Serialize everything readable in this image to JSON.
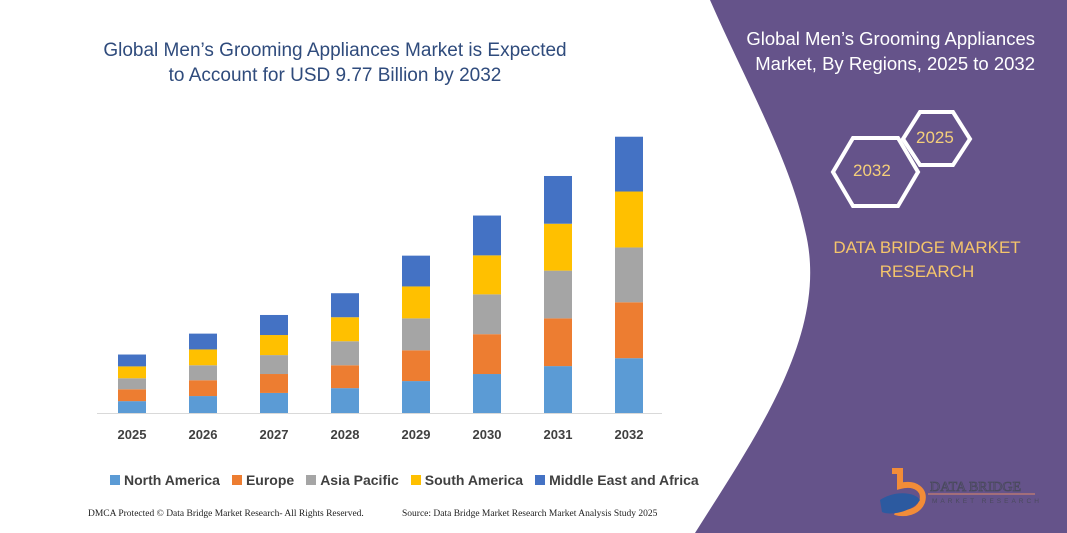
{
  "chart_data": {
    "type": "bar",
    "stacked": true,
    "title": "Global Men’s Grooming Appliances Market is Expected to Account for USD 9.77 Billion by 2032",
    "categories": [
      "2025",
      "2026",
      "2027",
      "2028",
      "2029",
      "2030",
      "2031",
      "2032"
    ],
    "unit": "USD Billion (estimated)",
    "ylim": [
      0,
      9.77
    ],
    "grid": false,
    "legend_position": "bottom",
    "series": [
      {
        "name": "North America",
        "color": "#5b9bd5",
        "values": [
          0.42,
          0.6,
          0.71,
          0.88,
          1.13,
          1.38,
          1.66,
          1.94
        ]
      },
      {
        "name": "Europe",
        "color": "#ed7d31",
        "values": [
          0.42,
          0.56,
          0.67,
          0.81,
          1.09,
          1.41,
          1.69,
          1.98
        ]
      },
      {
        "name": "Asia Pacific",
        "color": "#a5a5a5",
        "values": [
          0.39,
          0.53,
          0.67,
          0.85,
          1.13,
          1.41,
          1.69,
          1.94
        ]
      },
      {
        "name": "South America",
        "color": "#ffc000",
        "values": [
          0.42,
          0.56,
          0.71,
          0.85,
          1.13,
          1.38,
          1.66,
          1.98
        ]
      },
      {
        "name": "Middle East and Africa",
        "color": "#4472c4",
        "values": [
          0.42,
          0.56,
          0.71,
          0.85,
          1.09,
          1.41,
          1.69,
          1.94
        ]
      }
    ]
  },
  "footer": {
    "left": "DMCA Protected © Data Bridge Market Research- All Rights Reserved.",
    "right": "Source: Data Bridge Market Research Market Analysis Study 2025"
  },
  "panel": {
    "color": "#65538a",
    "title": "Global Men’s Grooming Appliances Market, By Regions, 2025 to 2032",
    "hex_end": "2032",
    "hex_start": "2025",
    "brand": "DATA BRIDGE MARKET RESEARCH",
    "logo_text": "DATA BRIDGE MARKET RESEARCH"
  }
}
